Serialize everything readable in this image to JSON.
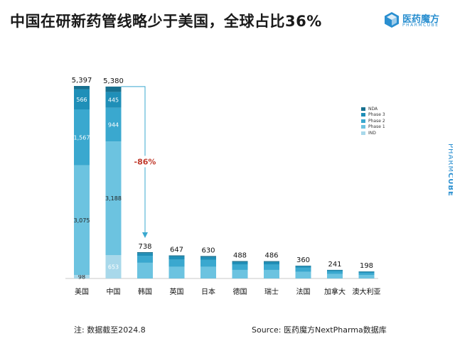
{
  "header": {
    "title": "中国在研新药管线略少于美国，全球占比36%",
    "logo_name": "医药魔方",
    "logo_sub": "PHARMCUBE"
  },
  "side_brand": {
    "prefix": "PHARM",
    "suffix": "CUBE"
  },
  "footer": {
    "note": "注:  数据截至2024.8",
    "source": "Source: 医药魔方NextPharma数据库"
  },
  "chart_data": {
    "type": "bar",
    "stacked": true,
    "categories": [
      "美国",
      "中国",
      "韩国",
      "英国",
      "日本",
      "德国",
      "瑞士",
      "法国",
      "加拿大",
      "澳大利亚"
    ],
    "totals": [
      5397,
      5380,
      738,
      647,
      630,
      488,
      486,
      360,
      241,
      198
    ],
    "total_labels": [
      "5,397",
      "5,380",
      "738",
      "647",
      "630",
      "488",
      "486",
      "360",
      "241",
      "198"
    ],
    "series": [
      {
        "name": "IND",
        "color": "#a8d8ea",
        "values": [
          98,
          653,
          0,
          0,
          0,
          0,
          0,
          0,
          0,
          0
        ],
        "labels": [
          "98",
          "653",
          "",
          "",
          "",
          "",
          "",
          "",
          "",
          ""
        ]
      },
      {
        "name": "Phase 1",
        "color": "#6cc3e0",
        "values": [
          3075,
          3188,
          440,
          330,
          330,
          240,
          240,
          190,
          130,
          100
        ],
        "labels": [
          "3,075",
          "3,188",
          "",
          "",
          "",
          "",
          "",
          "",
          "",
          ""
        ]
      },
      {
        "name": "Phase 2",
        "color": "#3aa8cf",
        "values": [
          1567,
          944,
          190,
          200,
          190,
          150,
          150,
          110,
          70,
          60
        ],
        "labels": [
          "1,567",
          "944",
          "",
          "",
          "",
          "",
          "",
          "",
          "",
          ""
        ]
      },
      {
        "name": "Phase 3",
        "color": "#1f8fb8",
        "values": [
          566,
          445,
          80,
          90,
          80,
          70,
          70,
          45,
          30,
          28
        ],
        "labels": [
          "566",
          "445",
          "",
          "",
          "",
          "",
          "",
          "",
          "",
          ""
        ]
      },
      {
        "name": "NDA",
        "color": "#17708f",
        "values": [
          91,
          150,
          28,
          27,
          30,
          28,
          26,
          15,
          11,
          10
        ],
        "labels": [
          "",
          "",
          "",
          "",
          "",
          "",
          "",
          "",
          "",
          ""
        ]
      }
    ],
    "legend_order": [
      "NDA",
      "Phase 3",
      "Phase 2",
      "Phase 1",
      "IND"
    ],
    "legend_position": "right",
    "annotation": {
      "text": "-86%",
      "from": "中国",
      "to": "韩国",
      "color": "#c0392b"
    },
    "ylim": [
      0,
      5600
    ],
    "grid": false
  }
}
